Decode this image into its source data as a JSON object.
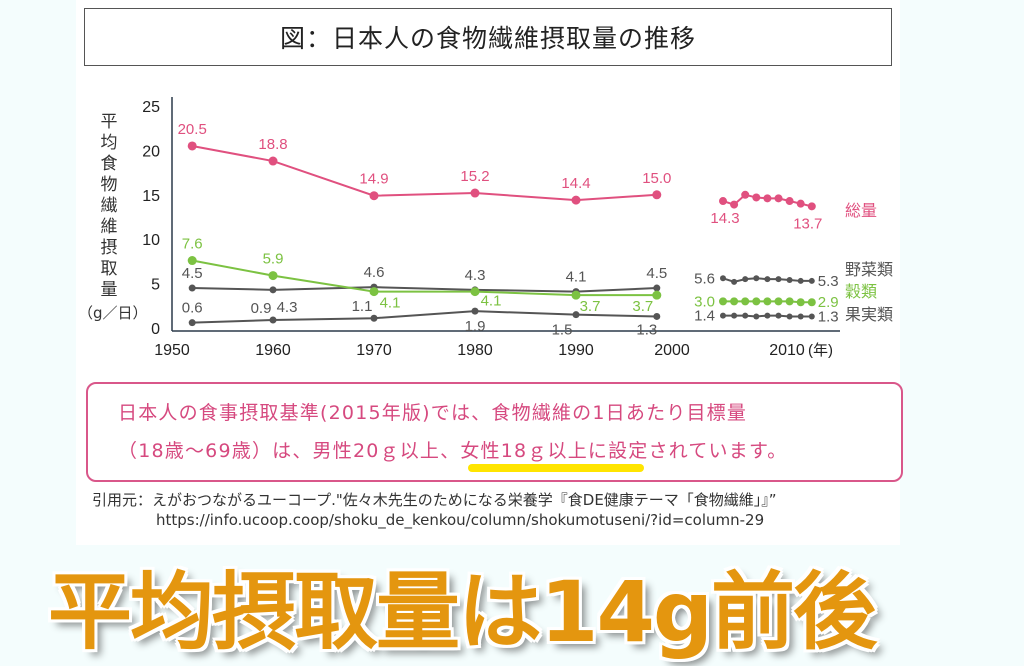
{
  "title": "図：日本人の食物繊維摂取量の推移",
  "chart_data": {
    "type": "line",
    "title": "図：日本人の食物繊維摂取量の推移",
    "ylabel": "平均食物繊維摂取量",
    "yunit": "（g／日）",
    "xunit": "(年)",
    "ylim": [
      0,
      25
    ],
    "yticks": [
      "0",
      "5",
      "10",
      "15",
      "20",
      "25"
    ],
    "xticks": [
      "1950",
      "1960",
      "1970",
      "1980",
      "1990",
      "2000",
      "2010"
    ],
    "grid": false,
    "series": [
      {
        "name": "総量",
        "color": "#e0507f",
        "early": {
          "x": [
            1952,
            1960,
            1970,
            1980,
            1990,
            1998
          ],
          "values": [
            20.5,
            18.8,
            14.9,
            15.2,
            14.4,
            15.0
          ],
          "labels": [
            "20.5",
            "18.8",
            "14.9",
            "15.2",
            "14.4",
            "15.0"
          ]
        },
        "late": {
          "x": [
            2003,
            2004,
            2005,
            2006,
            2007,
            2008,
            2009,
            2010,
            2011
          ],
          "values": [
            14.3,
            13.9,
            15.0,
            14.7,
            14.6,
            14.6,
            14.3,
            14.0,
            13.7
          ],
          "labels": [
            "14.3",
            "13.7"
          ]
        }
      },
      {
        "name": "野菜類",
        "color": "#555555",
        "early": {
          "x": [
            1952,
            1960,
            1970,
            1980,
            1990,
            1998
          ],
          "values": [
            4.5,
            4.3,
            4.6,
            4.3,
            4.1,
            4.5
          ],
          "labels": [
            "4.5",
            "4.3",
            "4.6",
            "4.3",
            "4.1",
            "4.5"
          ]
        },
        "late": {
          "x": [
            2003,
            2004,
            2005,
            2006,
            2007,
            2008,
            2009,
            2010,
            2011
          ],
          "values": [
            5.6,
            5.2,
            5.5,
            5.6,
            5.5,
            5.5,
            5.4,
            5.3,
            5.3
          ],
          "labels": [
            "5.6",
            "5.3"
          ]
        }
      },
      {
        "name": "穀類",
        "color": "#7cc242",
        "early": {
          "x": [
            1952,
            1960,
            1970,
            1980,
            1990,
            1998
          ],
          "values": [
            7.6,
            5.9,
            4.1,
            4.1,
            3.7,
            3.7
          ],
          "labels": [
            "7.6",
            "5.9",
            "4.1",
            "4.1",
            "3.7",
            "3.7"
          ]
        },
        "late": {
          "x": [
            2003,
            2004,
            2005,
            2006,
            2007,
            2008,
            2009,
            2010,
            2011
          ],
          "values": [
            3.0,
            3.0,
            3.0,
            3.0,
            3.0,
            3.0,
            3.0,
            2.9,
            2.9
          ],
          "labels": [
            "3.0",
            "2.9"
          ]
        }
      },
      {
        "name": "果実類",
        "color": "#555555",
        "early": {
          "x": [
            1952,
            1960,
            1970,
            1980,
            1990,
            1998
          ],
          "values": [
            0.6,
            0.9,
            1.1,
            1.9,
            1.5,
            1.3
          ],
          "labels": [
            "0.6",
            "0.9",
            "1.1",
            "1.9",
            "1.5",
            "1.3"
          ]
        },
        "late": {
          "x": [
            2003,
            2004,
            2005,
            2006,
            2007,
            2008,
            2009,
            2010,
            2011
          ],
          "values": [
            1.4,
            1.4,
            1.4,
            1.3,
            1.4,
            1.4,
            1.3,
            1.3,
            1.3
          ],
          "labels": [
            "1.4",
            "1.3"
          ]
        }
      }
    ]
  },
  "note": {
    "line1": "日本人の食事摂取基準(2015年版)では、食物繊維の1日あたり目標量",
    "line2": "（18歳～69歳）は、男性20ｇ以上、女性18ｇ以上に設定されています。",
    "border_color": "#d9578a",
    "highlight_color": "#ffe500"
  },
  "citation": {
    "line1": "引用元：えがおつながるユーコープ.\"佐々木先生のためになる栄養学『食DE健康テーマ「食物繊維」』”",
    "line2": "https://info.ucoop.coop/shoku_de_kenkou/column/shokumotuseni/?id=column-29"
  },
  "headline": "平均摂取量は14g前後"
}
